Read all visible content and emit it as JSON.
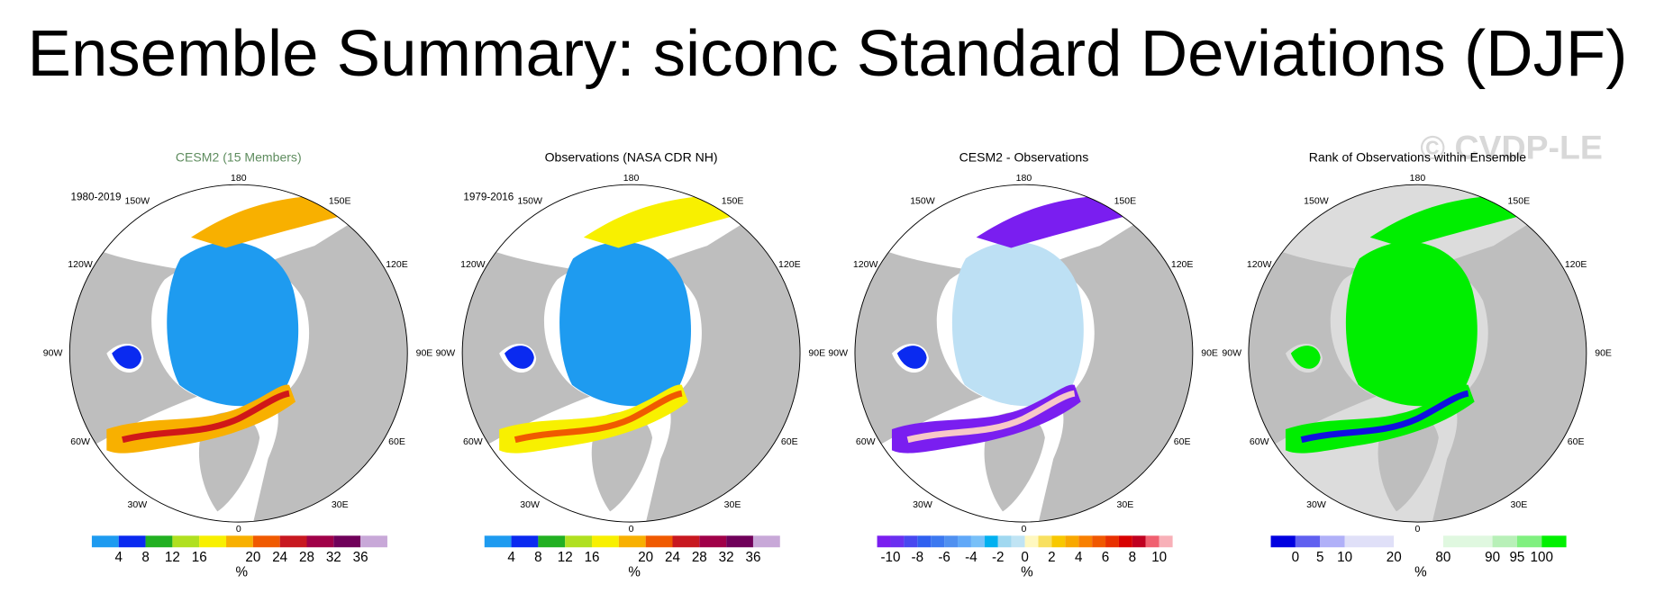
{
  "header": {
    "title": "Ensemble Summary: siconc Standard Deviations (DJF)",
    "watermark": "© CVDP-LE"
  },
  "lon_labels": [
    "180",
    "150E",
    "120E",
    "90E",
    "60E",
    "30E",
    "0",
    "30W",
    "60W",
    "90W",
    "120W",
    "150W"
  ],
  "panels": [
    {
      "title": "CESM2 (15 Members)",
      "title_color": "#5e8c5e",
      "period": "1980-2019",
      "colorbar": {
        "colors": [
          "#1e9bf0",
          "#0a2af0",
          "#22b022",
          "#b0e020",
          "#f8f000",
          "#f8b000",
          "#f05a00",
          "#c81820",
          "#a00048",
          "#70005a",
          "#c8a8d8"
        ],
        "labels": [
          4,
          8,
          12,
          16,
          20,
          24,
          28,
          32,
          36
        ],
        "unit": "%"
      }
    },
    {
      "title": "Observations (NASA CDR NH)",
      "title_color": "#000000",
      "period": "1979-2016",
      "colorbar": {
        "colors": [
          "#1e9bf0",
          "#0a2af0",
          "#22b022",
          "#b0e020",
          "#f8f000",
          "#f8b000",
          "#f05a00",
          "#c81820",
          "#a00048",
          "#70005a",
          "#c8a8d8"
        ],
        "labels": [
          4,
          8,
          12,
          16,
          20,
          24,
          28,
          32,
          36
        ],
        "unit": "%"
      }
    },
    {
      "title": "CESM2 - Observations",
      "title_color": "#000000",
      "colorbar": {
        "colors": [
          "#7a1ef0",
          "#6a30f0",
          "#4848f0",
          "#3060f0",
          "#3c78f0",
          "#5090f0",
          "#60a8f8",
          "#78c0f8",
          "#00b0f0",
          "#a0d8f0",
          "#c0e4f4",
          "#fff8c0",
          "#f8e060",
          "#f8c800",
          "#f8a800",
          "#f88000",
          "#f05800",
          "#e83000",
          "#d80000",
          "#c00020",
          "#f06070",
          "#f8b0b8"
        ],
        "labels": [
          -10,
          -8,
          -6,
          -4,
          -2,
          0,
          2,
          4,
          6,
          8,
          10
        ],
        "unit": "%"
      }
    },
    {
      "title": "Rank of Observations within Ensemble",
      "title_color": "#000000",
      "colorbar": {
        "colors": [
          "#0000e0",
          "#6060f0",
          "#b0b0f8",
          "#e0e0f8",
          "#ffffff",
          "#e0f8e0",
          "#b8f0b8",
          "#80f080",
          "#00f000"
        ],
        "labels": [
          0,
          5,
          10,
          20,
          80,
          90,
          95,
          100
        ],
        "unit": "%"
      }
    }
  ]
}
